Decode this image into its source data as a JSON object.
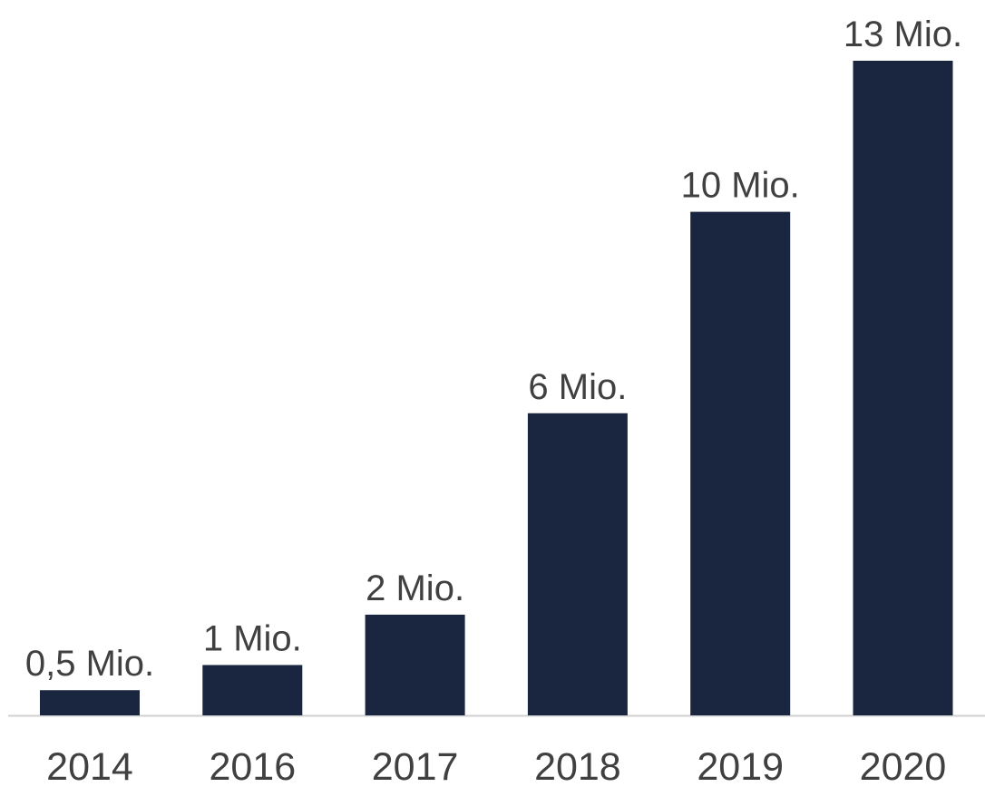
{
  "chart_data": {
    "type": "bar",
    "categories": [
      "2014",
      "2016",
      "2017",
      "2018",
      "2019",
      "2020"
    ],
    "values": [
      0.5,
      1,
      2,
      6,
      10,
      13
    ],
    "value_labels": [
      "0,5 Mio.",
      "1 Mio.",
      "2 Mio.",
      "6 Mio.",
      "10 Mio.",
      "13 Mio."
    ],
    "color": "#1a263f"
  }
}
